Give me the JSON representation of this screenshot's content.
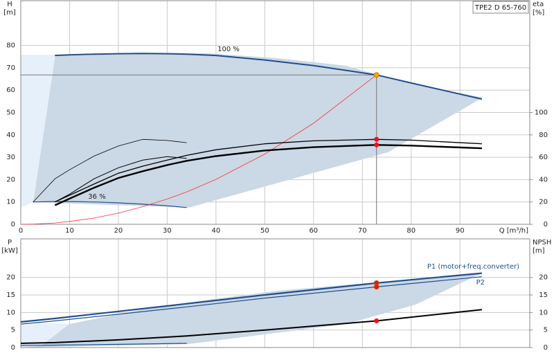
{
  "chart_data": [
    {
      "type": "line",
      "title": "TPE2 D 65-760",
      "y_label": "H",
      "y_unit": "[m]",
      "y2_label": "eta",
      "y2_unit": "[%]",
      "x_label": "Q [m³/h]",
      "x": [
        0,
        2.5,
        7,
        10,
        15,
        20,
        25,
        30,
        34,
        40,
        50,
        60,
        72.9,
        80,
        94.5
      ],
      "xlim": [
        0,
        104.3
      ],
      "xticks": [
        0,
        10,
        20,
        30,
        40,
        50,
        60,
        70,
        80,
        90
      ],
      "ylim": [
        0,
        100
      ],
      "yticks": [
        0,
        10,
        20,
        30,
        40,
        50,
        60,
        70,
        80
      ],
      "y2lim": [
        0,
        200
      ],
      "y2ticks": [
        0,
        20,
        40,
        60,
        80,
        100
      ],
      "grid": true,
      "series": [
        {
          "name": "100 %",
          "color": "#1f4e8c",
          "values": [
            75.4,
            null,
            75.5,
            75.8,
            76.1,
            76.3,
            76.4,
            76.3,
            76.1,
            75.5,
            73.5,
            71,
            66.8,
            63.2,
            56
          ]
        },
        {
          "name": "36 %",
          "color": "#1f4e8c",
          "values": [
            null,
            10,
            10.2,
            10.2,
            10,
            9.6,
            9,
            8.3,
            7.5,
            null,
            null,
            null,
            null,
            null,
            null
          ]
        },
        {
          "color": "#ff3333",
          "values": [
            0,
            0.08,
            0.6,
            1.3,
            2.8,
            5,
            7.9,
            11.3,
            14.5,
            20.1,
            31.4,
            45.2,
            66.8,
            null,
            null
          ]
        },
        {
          "color": "#000000",
          "axis": "y2",
          "values": [
            null,
            19.8,
            40.7,
            48.8,
            61,
            70,
            76,
            75,
            73,
            null,
            null,
            null,
            null,
            null,
            null
          ]
        },
        {
          "color": "#000000",
          "axis": "y2",
          "values": [
            null,
            null,
            20,
            27,
            40.7,
            50.6,
            57.4,
            60.5,
            59,
            null,
            null,
            null,
            null,
            null,
            null
          ]
        },
        {
          "color": "#000000",
          "axis": "y2",
          "values": [
            null,
            null,
            20,
            26,
            36,
            45.7,
            52,
            57.4,
            61.7,
            66.7,
            72,
            74.7,
            76,
            75.3,
            72
          ]
        },
        {
          "color": "#000000",
          "axis": "y2",
          "values": [
            null,
            null,
            17,
            23,
            32.7,
            41.4,
            47.5,
            53,
            56.8,
            61,
            66,
            69,
            71,
            70.4,
            68
          ]
        }
      ],
      "points": [
        {
          "x": 72.9,
          "y": 66.8,
          "color": "#f5a800"
        },
        {
          "x": 72.9,
          "y": 76,
          "axis": "y2",
          "color": "#e8141b"
        },
        {
          "x": 72.9,
          "y": 71,
          "axis": "y2",
          "color": "#e8141b"
        }
      ]
    },
    {
      "type": "line",
      "y_label": "P",
      "y_unit": "[kW]",
      "y2_label": "NPSH",
      "y2_unit": "[m]",
      "x": [
        0,
        7,
        20,
        34,
        50,
        72.9,
        94.5
      ],
      "xlim": [
        0,
        104.3
      ],
      "xticks": [
        0,
        10,
        20,
        30,
        40,
        50,
        60,
        70,
        80,
        90
      ],
      "ylim": [
        0,
        31
      ],
      "yticks": [
        0,
        5,
        10,
        15,
        20
      ],
      "y2lim": [
        0,
        31
      ],
      "y2ticks": [
        0,
        5,
        10,
        15,
        20
      ],
      "grid": true,
      "series": [
        {
          "name": "P1 (motor+freq.converter)",
          "color": "#1f4e8c",
          "values": [
            7.3,
            8.3,
            10.3,
            12.5,
            15,
            18.4,
            21.2
          ]
        },
        {
          "name": "P2",
          "color": "#1f4e8c",
          "values": [
            6.7,
            7.6,
            9.5,
            11.6,
            14.1,
            17.3,
            20.2
          ]
        },
        {
          "color": "#1f4e8c",
          "values": [
            0.6,
            0.7,
            0.9,
            1.2,
            null,
            null,
            null
          ]
        },
        {
          "color": "#000000",
          "axis": "y2",
          "values": [
            1.2,
            1.4,
            2.2,
            3.3,
            5,
            7.6,
            10.8
          ]
        }
      ],
      "points": [
        {
          "x": 72.9,
          "y": 18.4,
          "color": "#e8141b"
        },
        {
          "x": 72.9,
          "y": 17.3,
          "color": "#e8141b"
        },
        {
          "x": 72.9,
          "y": 7.6,
          "axis": "y2",
          "color": "#e8141b"
        }
      ]
    }
  ]
}
